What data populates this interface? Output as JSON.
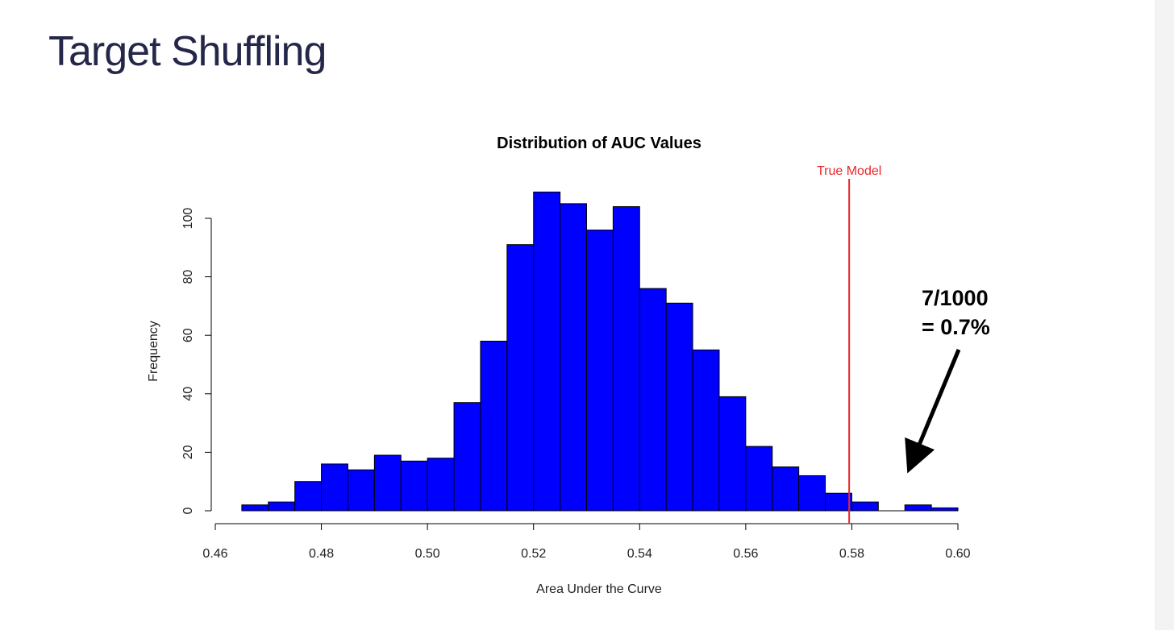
{
  "slide": {
    "title": "Target Shuffling"
  },
  "annotation": {
    "line1": "7/1000",
    "line2": "= 0.7%"
  },
  "colors": {
    "bar_fill": "#0000ff",
    "true_model_line": "#e8262a",
    "title_text": "#24274a"
  },
  "chart_data": {
    "type": "bar",
    "title": "Distribution of AUC Values",
    "xlabel": "Area Under the Curve",
    "ylabel": "Frequency",
    "xlim": [
      0.46,
      0.6
    ],
    "ylim": [
      0,
      110
    ],
    "x_ticks": [
      "0.46",
      "0.48",
      "0.50",
      "0.52",
      "0.54",
      "0.56",
      "0.58",
      "0.60"
    ],
    "y_ticks": [
      "0",
      "20",
      "40",
      "60",
      "80",
      "100"
    ],
    "bin_width": 0.005,
    "bins": [
      {
        "start": 0.465,
        "value": 2
      },
      {
        "start": 0.47,
        "value": 3
      },
      {
        "start": 0.475,
        "value": 10
      },
      {
        "start": 0.48,
        "value": 16
      },
      {
        "start": 0.485,
        "value": 14
      },
      {
        "start": 0.49,
        "value": 19
      },
      {
        "start": 0.495,
        "value": 17
      },
      {
        "start": 0.5,
        "value": 18
      },
      {
        "start": 0.505,
        "value": 37
      },
      {
        "start": 0.51,
        "value": 58
      },
      {
        "start": 0.515,
        "value": 91
      },
      {
        "start": 0.52,
        "value": 109
      },
      {
        "start": 0.525,
        "value": 105
      },
      {
        "start": 0.53,
        "value": 96
      },
      {
        "start": 0.535,
        "value": 104
      },
      {
        "start": 0.54,
        "value": 76
      },
      {
        "start": 0.545,
        "value": 71
      },
      {
        "start": 0.55,
        "value": 55
      },
      {
        "start": 0.555,
        "value": 39
      },
      {
        "start": 0.56,
        "value": 22
      },
      {
        "start": 0.565,
        "value": 15
      },
      {
        "start": 0.57,
        "value": 12
      },
      {
        "start": 0.575,
        "value": 6
      },
      {
        "start": 0.58,
        "value": 3
      },
      {
        "start": 0.585,
        "value": 0
      },
      {
        "start": 0.59,
        "value": 2
      },
      {
        "start": 0.595,
        "value": 1
      }
    ],
    "true_model": {
      "label": "True Model",
      "x": 0.5795
    }
  }
}
